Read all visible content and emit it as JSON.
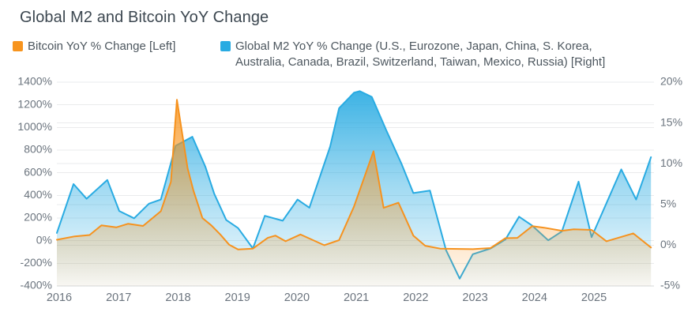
{
  "title": "Global M2 and Bitcoin YoY Change",
  "legend": {
    "items": [
      {
        "id": "bitcoin",
        "color": "#F7941E",
        "lines": [
          "Bitcoin YoY % Change [Left]"
        ]
      },
      {
        "id": "m2",
        "color": "#29ABE2",
        "lines": [
          "Global M2 YoY % Change (U.S., Eurozone, Japan, China, S. Korea,",
          "Australia, Canada, Brazil, Switzerland, Taiwan, Mexico, Russia) [Right]"
        ]
      }
    ]
  },
  "chart_data": {
    "type": "area",
    "title": "Global M2 and Bitcoin YoY Change",
    "grid": true,
    "legend_position": "top-left",
    "x_axis": {
      "range": [
        2016.0,
        2026.05
      ],
      "ticks": [
        2016,
        2017,
        2018,
        2019,
        2020,
        2021,
        2022,
        2023,
        2024,
        2025
      ],
      "tick_labels": [
        "2016",
        "2017",
        "2018",
        "2019",
        "2020",
        "2021",
        "2022",
        "2023",
        "2024",
        "2025"
      ]
    },
    "left_axis": {
      "name": "Bitcoin YoY % Change",
      "range": [
        -400,
        1400
      ],
      "tick_values": [
        1400,
        1200,
        1000,
        800,
        600,
        400,
        200,
        0,
        -200,
        -400
      ],
      "tick_labels": [
        "1400%",
        "1200%",
        "1000%",
        "800%",
        "600%",
        "400%",
        "200%",
        "0%",
        "-200%",
        "-400%"
      ]
    },
    "right_axis": {
      "name": "Global M2 YoY % Change",
      "range": [
        -5,
        20
      ],
      "tick_values": [
        20,
        15,
        10,
        5,
        0,
        -5
      ],
      "tick_labels": [
        "20%",
        "15%",
        "10%",
        "5%",
        "0%",
        "-5%"
      ]
    },
    "series": [
      {
        "id": "bitcoin",
        "name": "Bitcoin YoY % Change [Left]",
        "axis": "left",
        "color": "#F6921E",
        "unit": "%",
        "points": [
          [
            2016.0,
            8
          ],
          [
            2016.3,
            38
          ],
          [
            2016.55,
            50
          ],
          [
            2016.75,
            135
          ],
          [
            2017.0,
            118
          ],
          [
            2017.2,
            150
          ],
          [
            2017.45,
            130
          ],
          [
            2017.75,
            260
          ],
          [
            2017.92,
            520
          ],
          [
            2018.02,
            1245
          ],
          [
            2018.2,
            640
          ],
          [
            2018.3,
            440
          ],
          [
            2018.45,
            200
          ],
          [
            2018.6,
            135
          ],
          [
            2018.75,
            55
          ],
          [
            2018.9,
            -35
          ],
          [
            2019.05,
            -78
          ],
          [
            2019.3,
            -70
          ],
          [
            2019.55,
            25
          ],
          [
            2019.68,
            45
          ],
          [
            2019.85,
            -5
          ],
          [
            2020.1,
            55
          ],
          [
            2020.5,
            -40
          ],
          [
            2020.75,
            5
          ],
          [
            2021.0,
            300
          ],
          [
            2021.33,
            790
          ],
          [
            2021.5,
            290
          ],
          [
            2021.75,
            335
          ],
          [
            2022.0,
            45
          ],
          [
            2022.2,
            -45
          ],
          [
            2022.45,
            -70
          ],
          [
            2023.0,
            -75
          ],
          [
            2023.3,
            -65
          ],
          [
            2023.55,
            22
          ],
          [
            2023.75,
            25
          ],
          [
            2024.0,
            128
          ],
          [
            2024.2,
            115
          ],
          [
            2024.5,
            88
          ],
          [
            2024.7,
            100
          ],
          [
            2025.0,
            95
          ],
          [
            2025.25,
            -5
          ],
          [
            2025.7,
            65
          ],
          [
            2026.0,
            -60
          ]
        ]
      },
      {
        "id": "m2",
        "name": "Global M2 YoY % Change (U.S., Eurozone, Japan, China, S. Korea, Australia, Canada, Brazil, Switzerland, Taiwan, Mexico, Russia) [Right]",
        "axis": "right",
        "color": "#29ABE2",
        "unit": "%",
        "points": [
          [
            2016.0,
            1.5
          ],
          [
            2016.28,
            7.5
          ],
          [
            2016.5,
            5.7
          ],
          [
            2016.85,
            8.0
          ],
          [
            2017.05,
            4.2
          ],
          [
            2017.3,
            3.3
          ],
          [
            2017.55,
            5.1
          ],
          [
            2017.75,
            5.6
          ],
          [
            2018.0,
            12.2
          ],
          [
            2018.28,
            13.3
          ],
          [
            2018.5,
            9.6
          ],
          [
            2018.65,
            6.3
          ],
          [
            2018.85,
            3.1
          ],
          [
            2019.05,
            2.1
          ],
          [
            2019.3,
            -0.4
          ],
          [
            2019.5,
            3.6
          ],
          [
            2019.8,
            3.0
          ],
          [
            2020.05,
            5.6
          ],
          [
            2020.25,
            4.6
          ],
          [
            2020.6,
            12.1
          ],
          [
            2020.75,
            16.8
          ],
          [
            2021.0,
            18.7
          ],
          [
            2021.1,
            18.9
          ],
          [
            2021.3,
            18.2
          ],
          [
            2021.55,
            14.0
          ],
          [
            2021.8,
            10.0
          ],
          [
            2022.0,
            6.4
          ],
          [
            2022.28,
            6.7
          ],
          [
            2022.55,
            -0.6
          ],
          [
            2022.78,
            -4.1
          ],
          [
            2023.0,
            -1.1
          ],
          [
            2023.3,
            -0.4
          ],
          [
            2023.55,
            0.7
          ],
          [
            2023.78,
            3.5
          ],
          [
            2024.0,
            2.4
          ],
          [
            2024.27,
            0.6
          ],
          [
            2024.5,
            1.7
          ],
          [
            2024.78,
            7.8
          ],
          [
            2025.0,
            1.0
          ],
          [
            2025.5,
            9.3
          ],
          [
            2025.75,
            5.6
          ],
          [
            2026.0,
            10.8
          ]
        ]
      }
    ],
    "colors": {
      "grid_line": "#EAEBEC",
      "axis_line": "#D5D8DA",
      "axis_text": "#6B747E",
      "title_text": "#3C4750",
      "legend_text": "#4C565E"
    }
  }
}
